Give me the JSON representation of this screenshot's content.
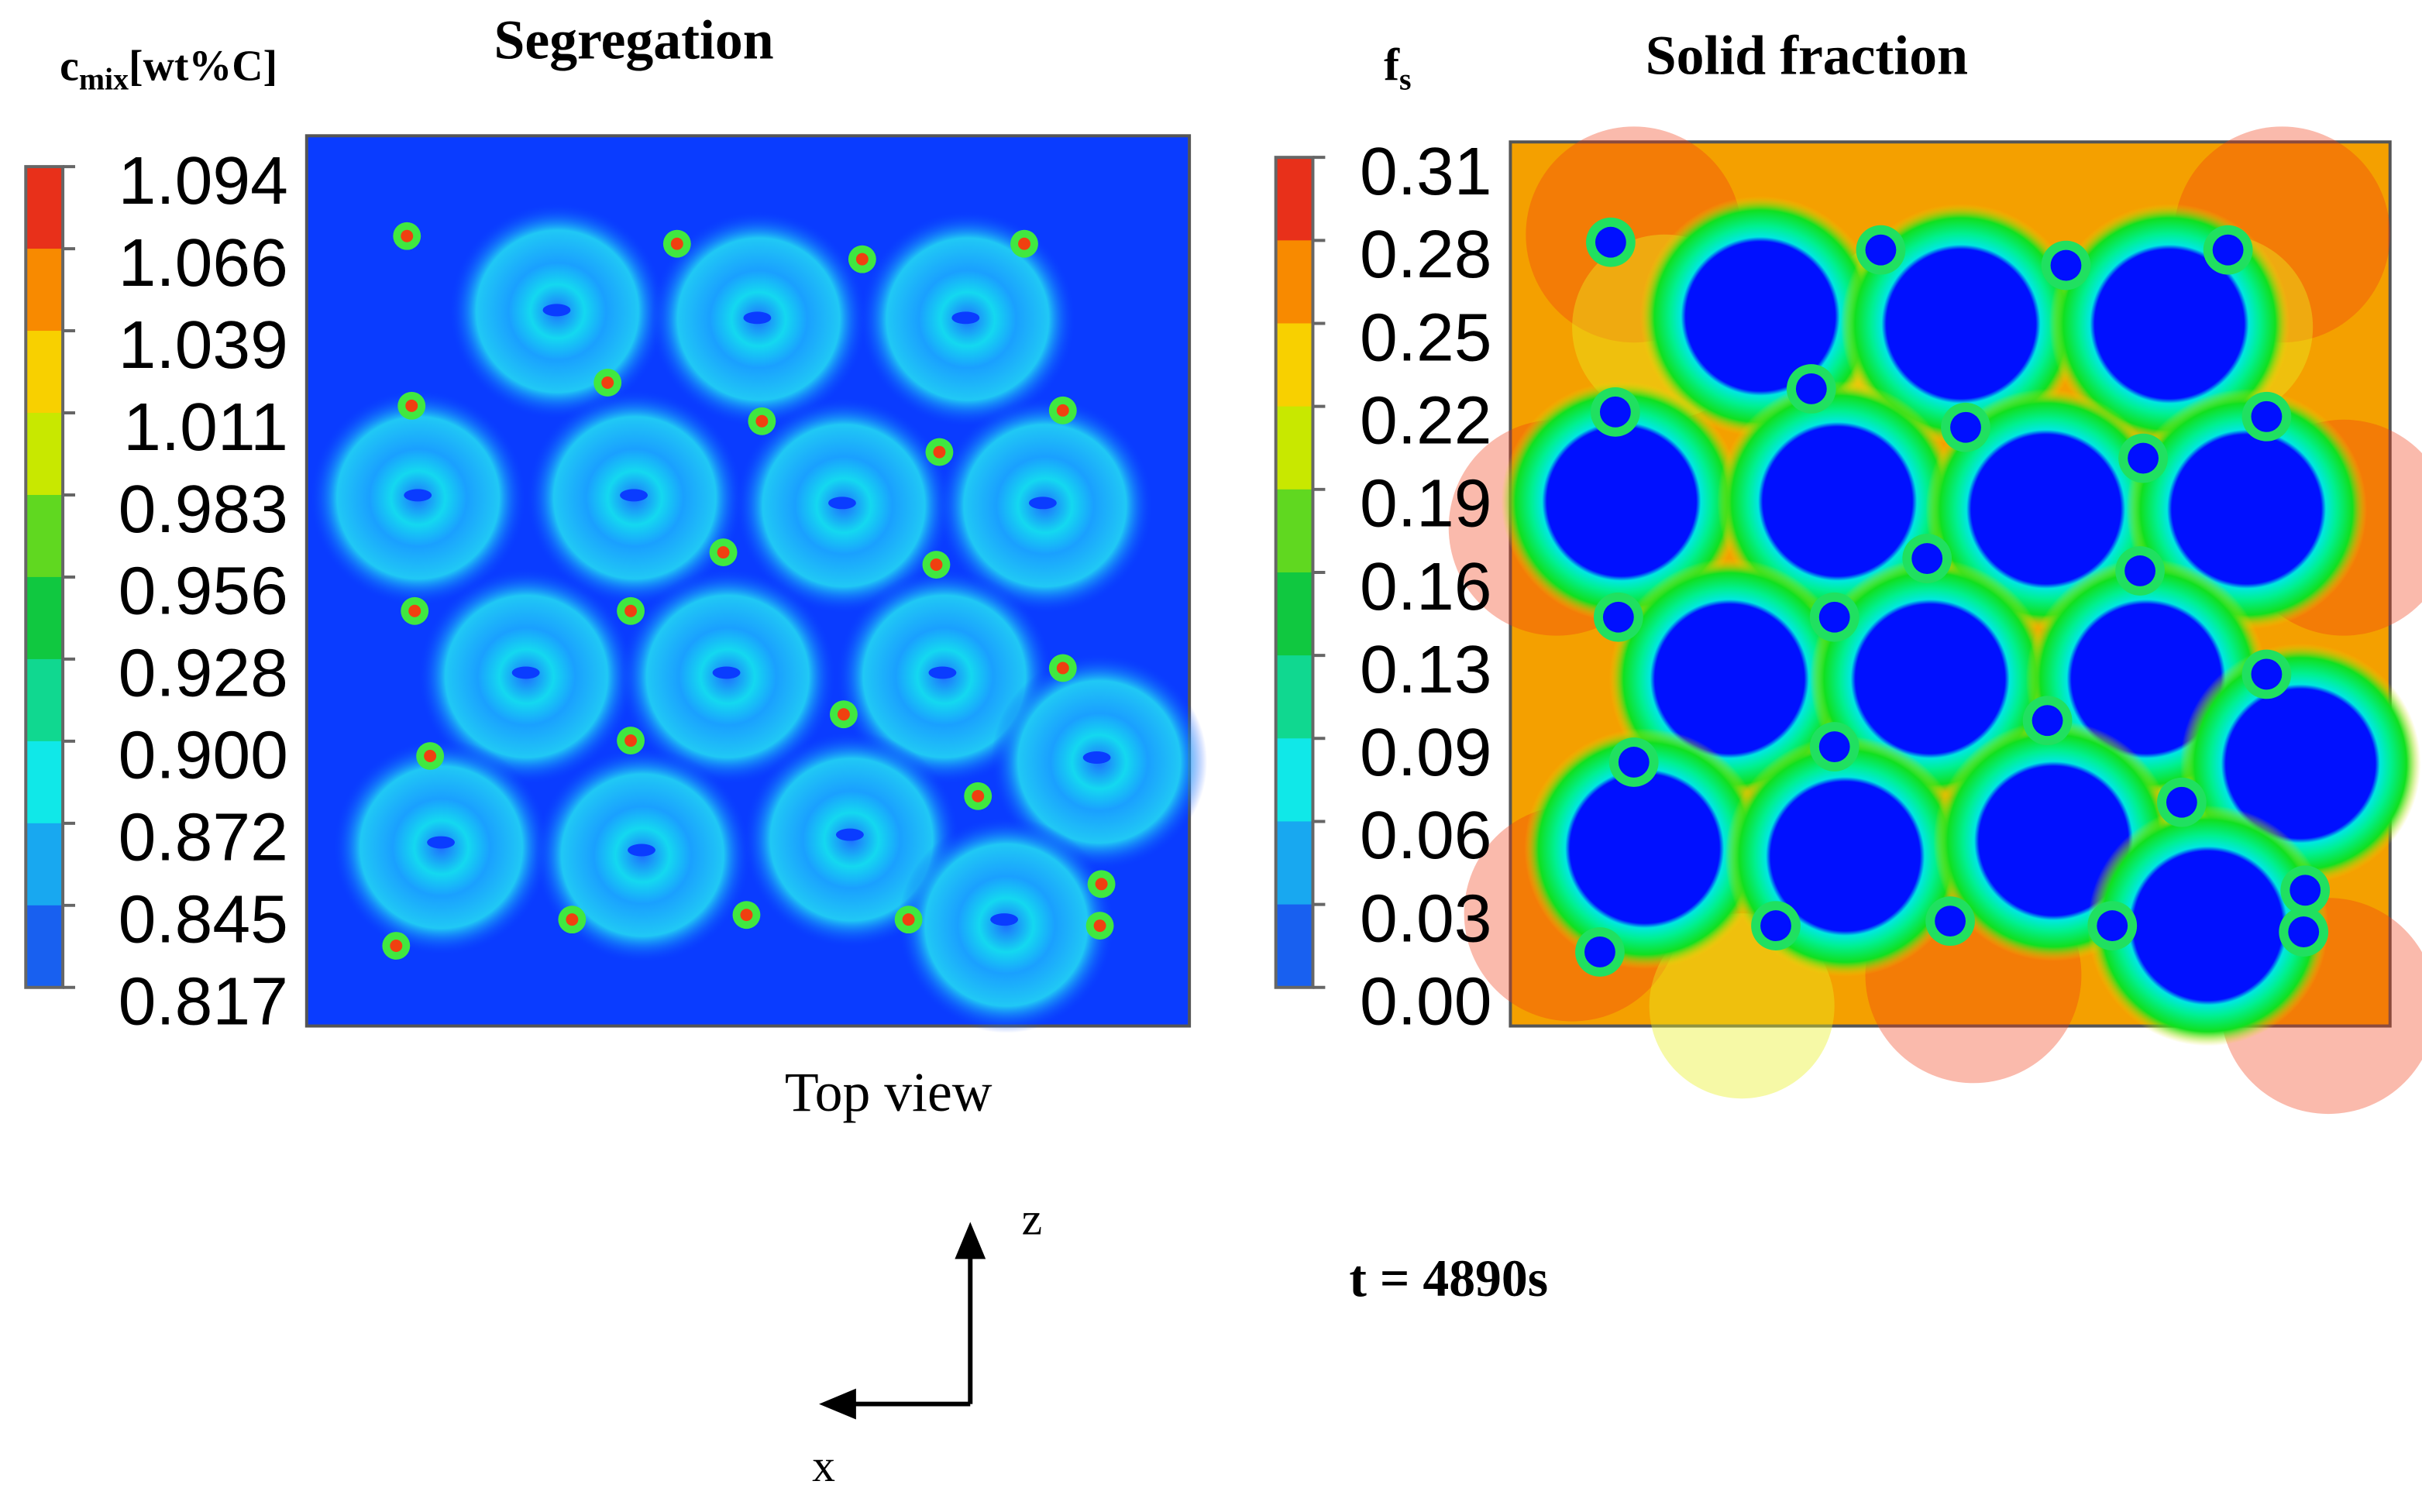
{
  "panels": [
    {
      "title": "Segregation",
      "colorbar": {
        "symbol": "c",
        "subscript": "mix",
        "unit": "[wt%C]",
        "ticks": [
          "1.094",
          "1.066",
          "1.039",
          "1.011",
          "0.983",
          "0.956",
          "0.928",
          "0.900",
          "0.872",
          "0.845",
          "0.817"
        ]
      }
    },
    {
      "title": "Solid fraction",
      "colorbar": {
        "symbol": "f",
        "subscript": "s",
        "ticks": [
          "0.31",
          "0.28",
          "0.25",
          "0.22",
          "0.19",
          "0.16",
          "0.13",
          "0.09",
          "0.06",
          "0.03",
          "0.00"
        ]
      }
    }
  ],
  "caption": "Top view",
  "axes": {
    "vertical": "z",
    "horizontal": "x"
  },
  "time": "t = 4890s"
}
